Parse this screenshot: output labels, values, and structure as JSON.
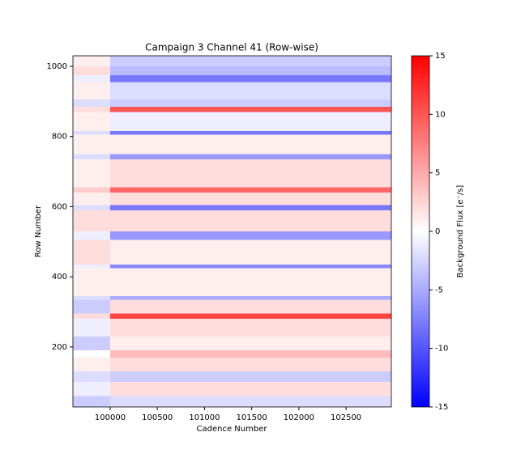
{
  "chart_data": {
    "type": "heatmap",
    "title": "Campaign 3 Channel 41 (Row-wise)",
    "x_label": "Cadence Number",
    "y_label": "Row Number",
    "colorbar_label": "Background Flux [e⁻/s]",
    "colormap": "bwr",
    "x_bins": [
      99605,
      100000,
      102980
    ],
    "y_bins": [
      29,
      60,
      100,
      130,
      170,
      190,
      230,
      280,
      295,
      335,
      345,
      425,
      435,
      505,
      530,
      590,
      605,
      640,
      655,
      735,
      750,
      805,
      815,
      870,
      885,
      905,
      955,
      975,
      1000,
      1030
    ],
    "values": [
      [
        -3,
        -2
      ],
      [
        -1,
        2
      ],
      [
        -2,
        -3
      ],
      [
        1,
        2
      ],
      [
        0,
        4
      ],
      [
        -3,
        1
      ],
      [
        -1,
        2
      ],
      [
        2,
        11
      ],
      [
        -3,
        2
      ],
      [
        -2,
        -5
      ],
      [
        1,
        1
      ],
      [
        -1,
        -7
      ],
      [
        2,
        1
      ],
      [
        -1,
        -6
      ],
      [
        2,
        2
      ],
      [
        -2,
        -8
      ],
      [
        1,
        2
      ],
      [
        3,
        9
      ],
      [
        1,
        2
      ],
      [
        -2,
        -6
      ],
      [
        1,
        1
      ],
      [
        -2,
        -8
      ],
      [
        1,
        -1
      ],
      [
        2,
        10
      ],
      [
        -2,
        -3
      ],
      [
        1,
        -2
      ],
      [
        -1,
        -8
      ],
      [
        2,
        -4
      ],
      [
        1,
        -3
      ]
    ],
    "xlim": [
      99605,
      102980
    ],
    "ylim": [
      29,
      1030
    ],
    "xticks": [
      100000,
      100500,
      101000,
      101500,
      102000,
      102500
    ],
    "yticks": [
      200,
      400,
      600,
      800,
      1000
    ],
    "clim": [
      -15,
      15
    ],
    "cticks": [
      -15,
      -10,
      -5,
      0,
      5,
      10,
      15
    ]
  }
}
